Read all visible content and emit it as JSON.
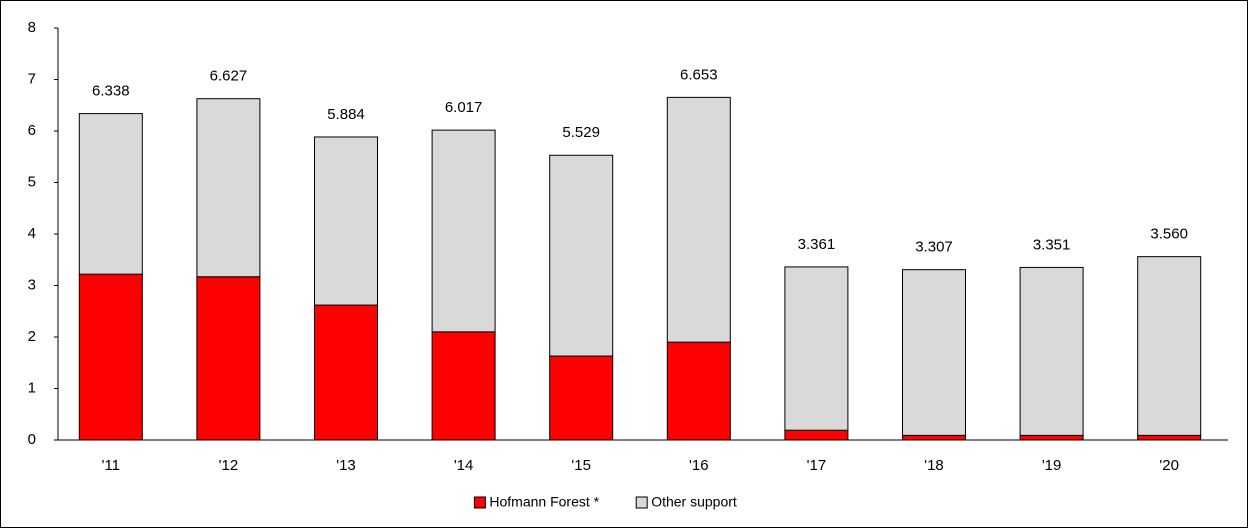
{
  "chart_data": {
    "type": "stacked_bar",
    "categories": [
      "'11",
      "'12",
      "'13",
      "'14",
      "'15",
      "'16",
      "'17",
      "'18",
      "'19",
      "'20"
    ],
    "series": [
      {
        "name": "Hofmann Forest *",
        "color": "#ff0000",
        "values": [
          3.22,
          3.17,
          2.62,
          2.1,
          1.63,
          1.9,
          0.19,
          0.09,
          0.09,
          0.09
        ]
      },
      {
        "name": "Other support",
        "color": "#d9d9d9",
        "values": [
          3.118,
          3.457,
          3.264,
          3.917,
          3.899,
          4.753,
          3.171,
          3.217,
          3.261,
          3.47
        ]
      }
    ],
    "total_labels": [
      "6.338",
      "6.627",
      "5.884",
      "6.017",
      "5.529",
      "6.653",
      "3.361",
      "3.307",
      "3.351",
      "3.560"
    ],
    "ylim": [
      0,
      8
    ],
    "yticks": [
      0,
      1,
      2,
      3,
      4,
      5,
      6,
      7,
      8
    ],
    "grid": false,
    "legend": "bottom"
  }
}
